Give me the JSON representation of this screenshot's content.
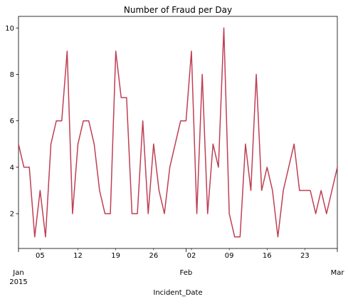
{
  "chart_data": {
    "type": "line",
    "title": "Number of Fraud per Day",
    "xlabel": "Incident_Date",
    "ylabel": "",
    "xlim": [
      "2015-01-01",
      "2015-03-01"
    ],
    "ylim": [
      0.5,
      10.5
    ],
    "grid": false,
    "legend": "none",
    "line_color": "#bf3f54",
    "y_ticks": [
      2,
      4,
      6,
      8,
      10
    ],
    "x_minor_ticks": [
      {
        "date": "2015-01-05",
        "label": "05"
      },
      {
        "date": "2015-01-12",
        "label": "12"
      },
      {
        "date": "2015-01-19",
        "label": "19"
      },
      {
        "date": "2015-01-26",
        "label": "26"
      },
      {
        "date": "2015-02-02",
        "label": "02"
      },
      {
        "date": "2015-02-09",
        "label": "09"
      },
      {
        "date": "2015-02-16",
        "label": "16"
      },
      {
        "date": "2015-02-23",
        "label": "23"
      }
    ],
    "x_major_ticks": [
      {
        "date": "2015-01-01",
        "label": "Jan",
        "sublabel": "2015"
      },
      {
        "date": "2015-02-01",
        "label": "Feb",
        "sublabel": ""
      },
      {
        "date": "2015-03-01",
        "label": "Mar",
        "sublabel": ""
      }
    ],
    "series": [
      {
        "x": [
          "2015-01-01",
          "2015-01-02",
          "2015-01-03",
          "2015-01-04",
          "2015-01-05",
          "2015-01-06",
          "2015-01-07",
          "2015-01-08",
          "2015-01-09",
          "2015-01-10",
          "2015-01-11",
          "2015-01-12",
          "2015-01-13",
          "2015-01-14",
          "2015-01-15",
          "2015-01-16",
          "2015-01-17",
          "2015-01-18",
          "2015-01-19",
          "2015-01-20",
          "2015-01-21",
          "2015-01-22",
          "2015-01-23",
          "2015-01-24",
          "2015-01-25",
          "2015-01-26",
          "2015-01-27",
          "2015-01-28",
          "2015-01-29",
          "2015-01-30",
          "2015-01-31",
          "2015-02-01",
          "2015-02-02",
          "2015-02-03",
          "2015-02-04",
          "2015-02-05",
          "2015-02-06",
          "2015-02-07",
          "2015-02-08",
          "2015-02-09",
          "2015-02-10",
          "2015-02-11",
          "2015-02-12",
          "2015-02-13",
          "2015-02-14",
          "2015-02-15",
          "2015-02-16",
          "2015-02-17",
          "2015-02-18",
          "2015-02-19",
          "2015-02-20",
          "2015-02-21",
          "2015-02-22",
          "2015-02-23",
          "2015-02-24",
          "2015-02-25",
          "2015-02-26",
          "2015-02-27",
          "2015-02-28",
          "2015-03-01"
        ],
        "values": [
          5,
          4,
          4,
          1,
          3,
          1,
          5,
          6,
          6,
          9,
          2,
          5,
          6,
          6,
          5,
          3,
          2,
          2,
          9,
          7,
          7,
          2,
          2,
          6,
          2,
          5,
          3,
          2,
          4,
          5,
          6,
          6,
          9,
          2,
          8,
          2,
          5,
          4,
          10,
          2,
          1,
          1,
          5,
          3,
          8,
          3,
          4,
          3,
          1,
          3,
          4,
          5,
          3,
          3,
          3,
          2,
          3,
          2,
          3,
          4
        ]
      }
    ]
  }
}
